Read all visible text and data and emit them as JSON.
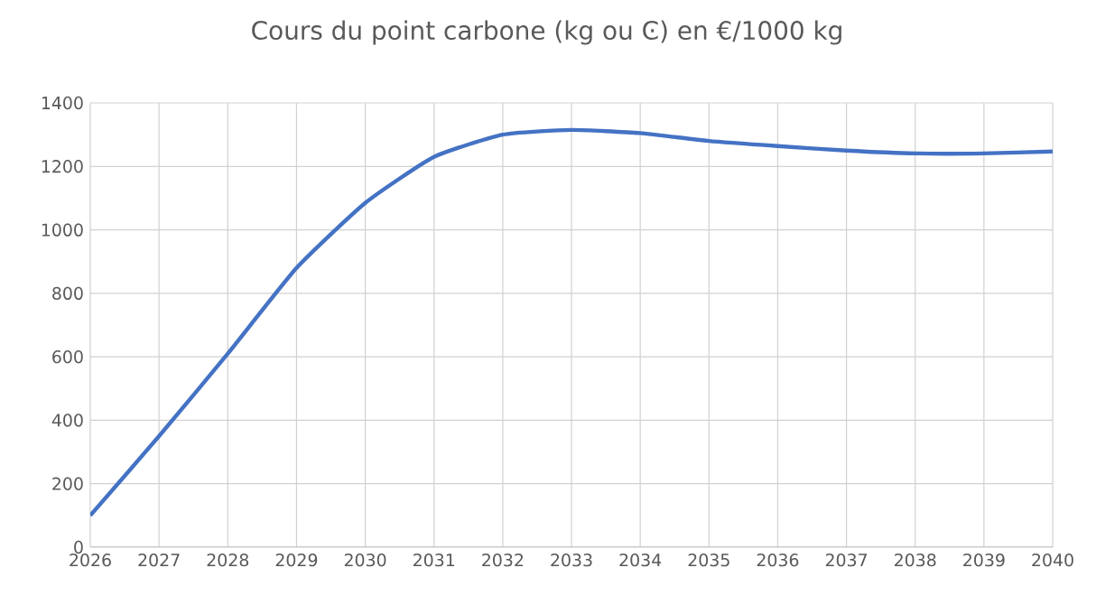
{
  "chart_data": {
    "type": "line",
    "title": "Cours du point carbone (kg ou Ͼ) en €/1000 kg",
    "categories": [
      "2026",
      "2027",
      "2028",
      "2029",
      "2030",
      "2031",
      "2032",
      "2033",
      "2034",
      "2035",
      "2036",
      "2037",
      "2038",
      "2039",
      "2040"
    ],
    "series": [
      {
        "color": "#4472c4",
        "values": [
          100,
          350,
          610,
          880,
          1085,
          1230,
          1300,
          1315,
          1305,
          1280,
          1264,
          1250,
          1241,
          1241,
          1247
        ]
      }
    ],
    "ylim": [
      0,
      1400
    ],
    "yticks": [
      0,
      200,
      400,
      600,
      800,
      1000,
      1200,
      1400
    ],
    "grid": true,
    "legend": false,
    "marker": "none",
    "line_style": "solid"
  }
}
